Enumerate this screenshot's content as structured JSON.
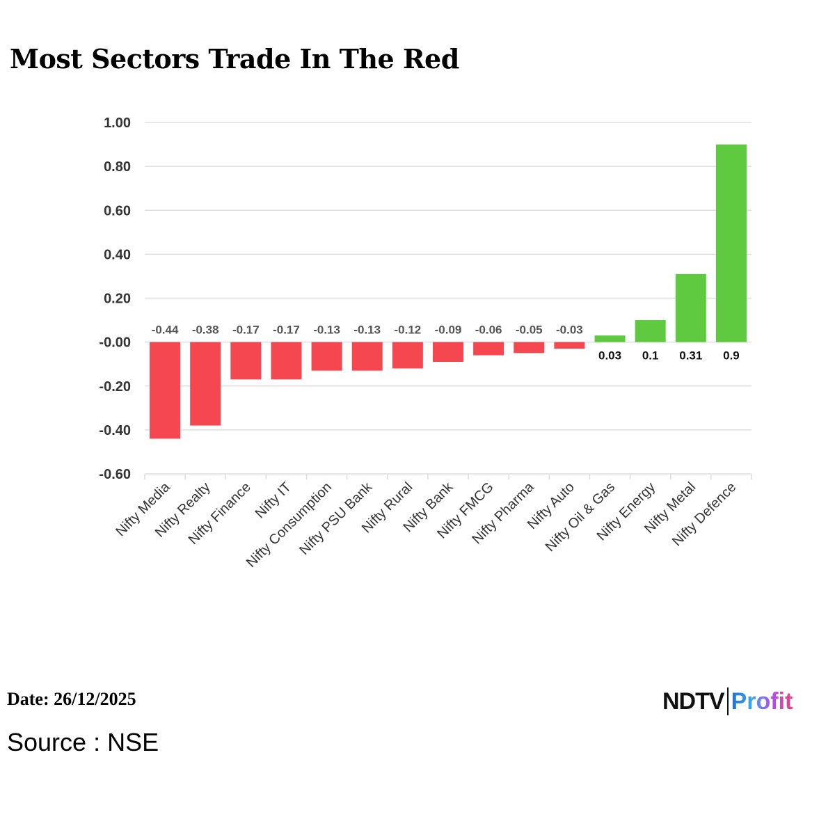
{
  "title": "Most Sectors Trade In The Red",
  "footer": {
    "date": "Date: 26/12/2025",
    "source": "Source : NSE"
  },
  "logo": {
    "text": "NDTV Profit",
    "part1": "NDTV",
    "part2": "Profit"
  },
  "colors": {
    "negative": "#f5474f",
    "positive": "#5fc940",
    "grid": "#dddddd"
  },
  "chart_data": {
    "type": "bar",
    "title": "Most Sectors Trade In The Red",
    "categories": [
      "Nifty Media",
      "Nifty Realty",
      "Nifty Finance",
      "Nifty IT",
      "Nifty Consumption",
      "Nifty PSU Bank",
      "Nifty Rural",
      "Nifty Bank",
      "Nifty FMCG",
      "Nifty Pharma",
      "Nifty Auto",
      "Nifty Oil & Gas",
      "Nifty Energy",
      "Nifty Metal",
      "Nifty Defence"
    ],
    "values": [
      -0.44,
      -0.38,
      -0.17,
      -0.17,
      -0.13,
      -0.13,
      -0.12,
      -0.09,
      -0.06,
      -0.05,
      -0.03,
      0.03,
      0.1,
      0.31,
      0.9
    ],
    "data_labels": [
      "-0.44",
      "-0.38",
      "-0.17",
      "-0.17",
      "-0.13",
      "-0.13",
      "-0.12",
      "-0.09",
      "-0.06",
      "-0.05",
      "-0.03",
      "0.03",
      "0.1",
      "0.31",
      "0.9"
    ],
    "ylim": [
      -0.6,
      1.0
    ],
    "yticks": [
      "1.00",
      "0.80",
      "0.60",
      "0.40",
      "0.20",
      "-0.00",
      "-0.20",
      "-0.40",
      "-0.60"
    ],
    "ytick_values": [
      1.0,
      0.8,
      0.6,
      0.4,
      0.2,
      0,
      -0.2,
      -0.4,
      -0.6
    ],
    "grid": true,
    "xlabel": "",
    "ylabel": ""
  }
}
